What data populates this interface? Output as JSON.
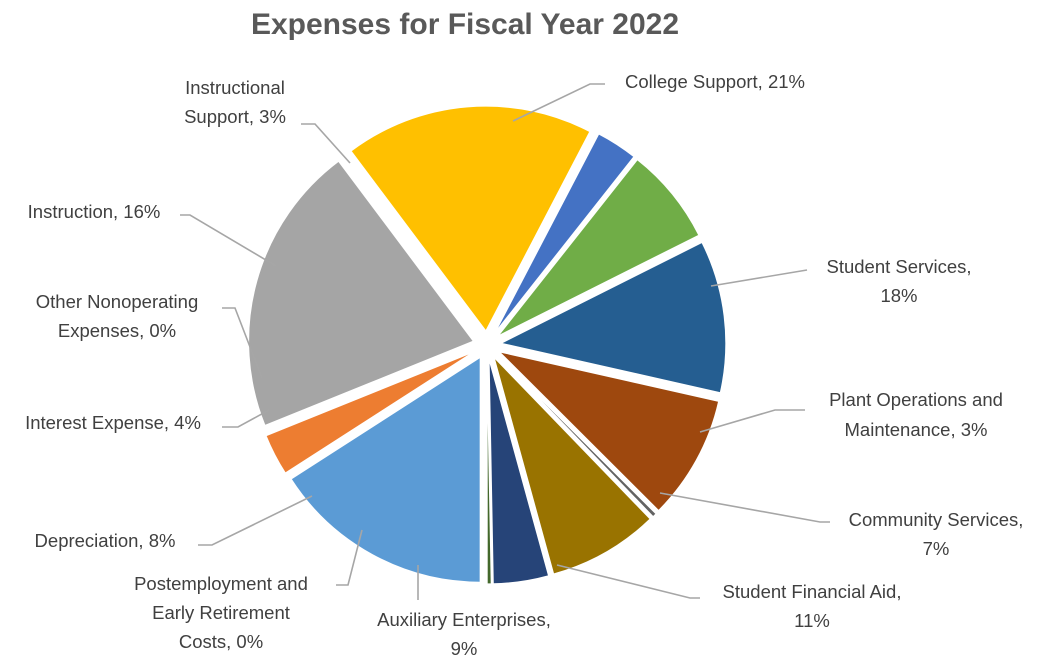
{
  "chart_data": {
    "type": "pie",
    "title": "Expenses for Fiscal Year 2022",
    "slices": [
      {
        "label": "College Support",
        "percent_text": "21%",
        "value": 21,
        "color": "#a5a5a5"
      },
      {
        "label": "Student Services",
        "percent_text": "18%",
        "value": 18,
        "color": "#ffc000"
      },
      {
        "label": "Plant Operations and Maintenance",
        "percent_text": "3%",
        "value": 3,
        "color": "#4472c4"
      },
      {
        "label": "Community Services",
        "percent_text": "7%",
        "value": 7,
        "color": "#70ad47"
      },
      {
        "label": "Student Financial Aid",
        "percent_text": "11%",
        "value": 11,
        "color": "#255e91"
      },
      {
        "label": "Auxiliary Enterprises",
        "percent_text": "9%",
        "value": 9,
        "color": "#9e480e"
      },
      {
        "label": "Postemployment and Early Retirement Costs",
        "percent_text": "0%",
        "value": 0.3,
        "color": "#636363"
      },
      {
        "label": "Depreciation",
        "percent_text": "8%",
        "value": 8,
        "color": "#997300"
      },
      {
        "label": "Interest Expense",
        "percent_text": "4%",
        "value": 4,
        "color": "#264478"
      },
      {
        "label": "Other Nonoperating Expenses",
        "percent_text": "0%",
        "value": 0.3,
        "color": "#43682b"
      },
      {
        "label": "Instruction",
        "percent_text": "16%",
        "value": 16,
        "color": "#5b9bd5"
      },
      {
        "label": "Instructional Support",
        "percent_text": "3%",
        "value": 3,
        "color": "#ed7d31"
      }
    ],
    "labels": [
      {
        "lines": [
          "College Support, 21%"
        ]
      },
      {
        "lines": [
          "Student Services,",
          "18%"
        ]
      },
      {
        "lines": [
          "Plant Operations and",
          "Maintenance, 3%"
        ]
      },
      {
        "lines": [
          "Community Services,",
          "7%"
        ]
      },
      {
        "lines": [
          "Student Financial Aid,",
          "11%"
        ]
      },
      {
        "lines": [
          "Auxiliary Enterprises,",
          "9%"
        ]
      },
      {
        "lines": [
          "Postemployment and",
          "Early Retirement",
          "Costs, 0%"
        ]
      },
      {
        "lines": [
          "Depreciation, 8%"
        ]
      },
      {
        "lines": [
          "Interest Expense, 4%"
        ]
      },
      {
        "lines": [
          "Other Nonoperating",
          "Expenses, 0%"
        ]
      },
      {
        "lines": [
          "Instruction, 16%"
        ]
      },
      {
        "lines": [
          "Instructional",
          "Support, 3%"
        ]
      }
    ],
    "legend": "none",
    "exploded": true
  }
}
